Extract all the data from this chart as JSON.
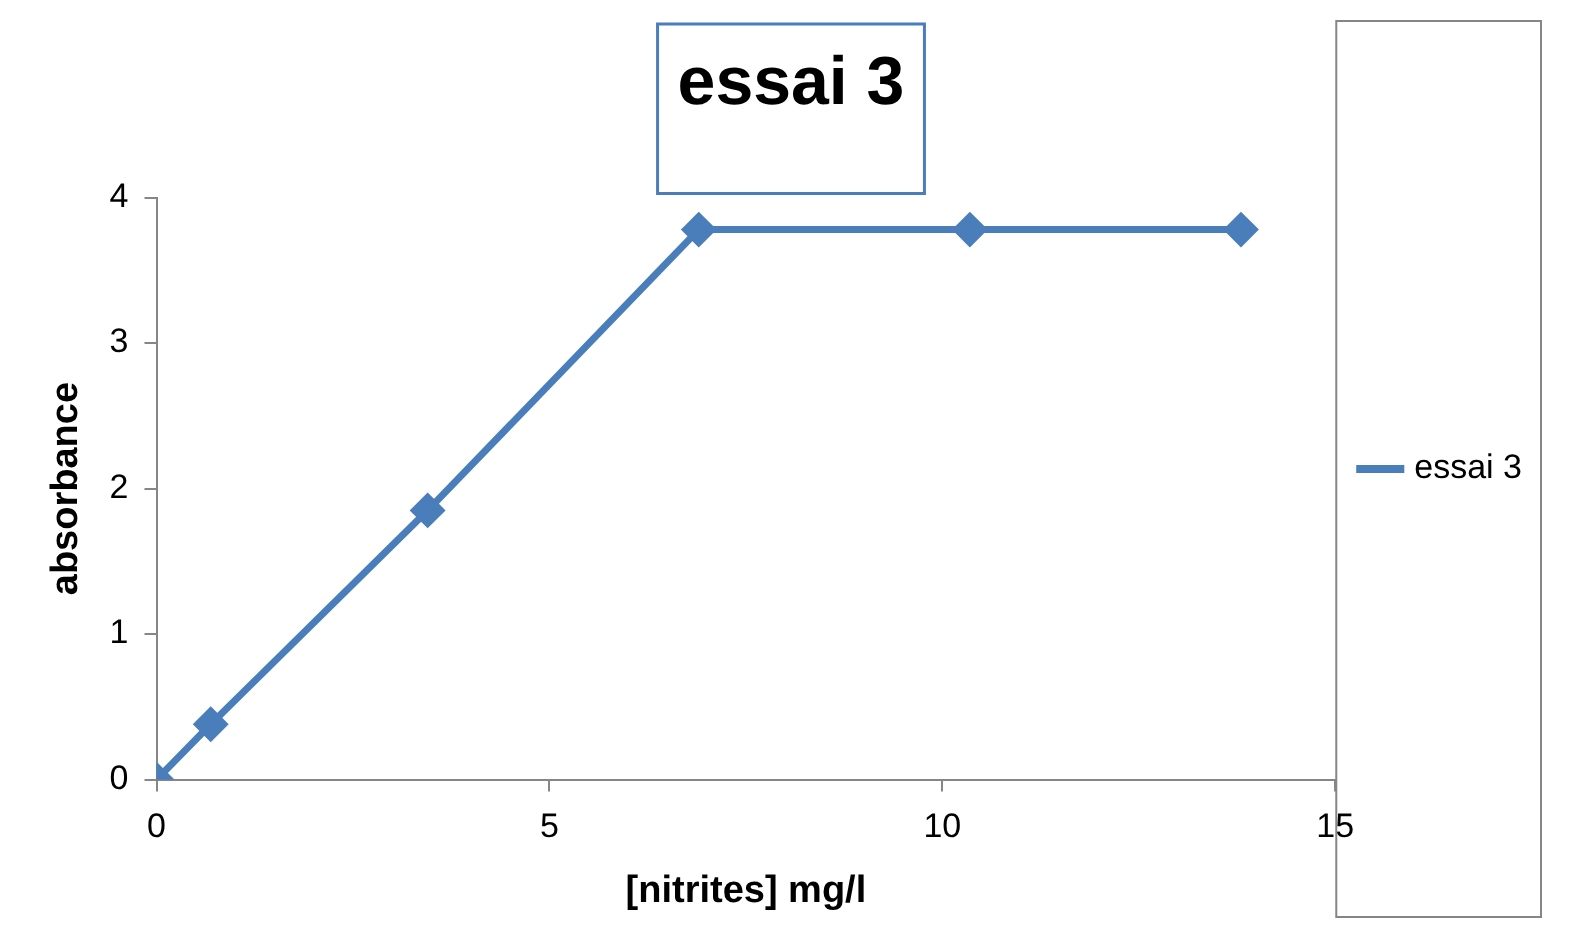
{
  "chart_data": {
    "type": "line",
    "title": "essai 3",
    "xlabel": "[nitrites] mg/l",
    "ylabel": "absorbance",
    "series": [
      {
        "name": "essai 3",
        "color": "#4a7ebb",
        "x": [
          0,
          0.69,
          3.45,
          6.9,
          10.35,
          13.8
        ],
        "values": [
          0,
          0.38,
          1.85,
          3.78,
          3.78,
          3.78
        ]
      }
    ],
    "xlim": [
      0,
      15
    ],
    "xticks": [
      0,
      5,
      10,
      15
    ],
    "ylim": [
      0,
      4
    ],
    "yticks": [
      0,
      1,
      2,
      3,
      4
    ],
    "grid": false,
    "legend": "right",
    "marker": "diamond",
    "line_style": "solid"
  }
}
